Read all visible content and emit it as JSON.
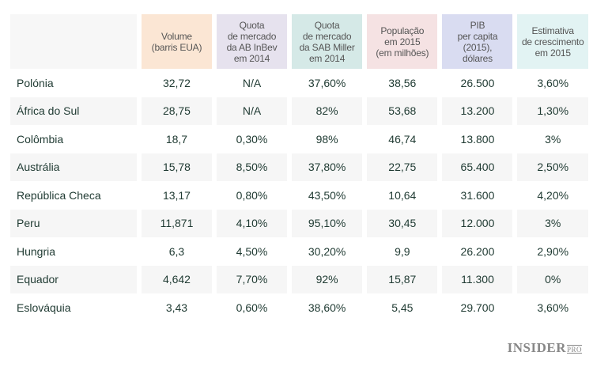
{
  "headers": [
    "",
    "Volume\n(barris EUA)",
    "Quota\nde mercado\nda AB InBev\nem 2014",
    "Quota\nde mercado\nda SAB Miller\nem 2014",
    "População\nem 2015\n(em milhões)",
    "PIB\nper capita\n(2015),\ndólares",
    "Estimativa\nde crescimento\nem 2015"
  ],
  "rows": [
    [
      "Polónia",
      "32,72",
      "N/A",
      "37,60%",
      "38,56",
      "26.500",
      "3,60%"
    ],
    [
      "África do Sul",
      "28,75",
      "N/A",
      "82%",
      "53,68",
      "13.200",
      "1,30%"
    ],
    [
      "Colômbia",
      "18,7",
      "0,30%",
      "98%",
      "46,74",
      "13.800",
      "3%"
    ],
    [
      "Austrália",
      "15,78",
      "8,50%",
      "37,80%",
      "22,75",
      "65.400",
      "2,50%"
    ],
    [
      "República Checa",
      "13,17",
      "0,80%",
      "43,50%",
      "10,64",
      "31.600",
      "4,20%"
    ],
    [
      "Peru",
      "11,871",
      "4,10%",
      "95,10%",
      "30,45",
      "12.000",
      "3%"
    ],
    [
      "Hungria",
      "6,3",
      "4,50%",
      "30,20%",
      "9,9",
      "26.200",
      "2,90%"
    ],
    [
      "Equador",
      "4,642",
      "7,70%",
      "92%",
      "15,87",
      "11.300",
      "0%"
    ],
    [
      "Eslováquia",
      "3,43",
      "0,60%",
      "38,60%",
      "5,45",
      "29.700",
      "3,60%"
    ]
  ],
  "logo": {
    "main": "INSIDER",
    "sub": "PRO"
  }
}
